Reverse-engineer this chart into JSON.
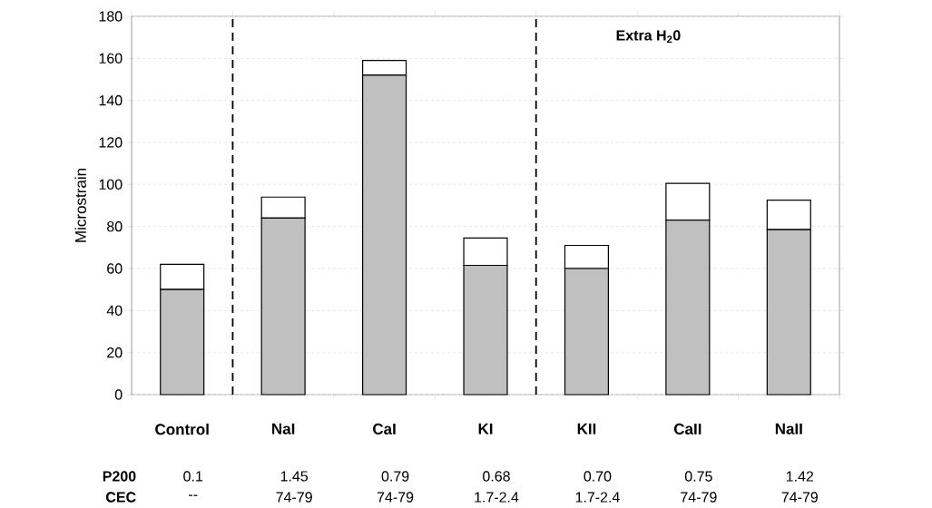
{
  "chart_data": {
    "type": "bar",
    "ylabel": "Microstrain",
    "categories": [
      "Control",
      "NaI",
      "CaI",
      "KI",
      "KII",
      "CaII",
      "NaII"
    ],
    "series": [
      {
        "color": "#c0c0c0",
        "values": [
          50,
          84,
          152,
          61.5,
          60,
          83,
          78.5
        ]
      },
      {
        "color": "#ffffff",
        "values": [
          12,
          10,
          7,
          13,
          11,
          17.5,
          14
        ]
      }
    ],
    "stacked": true,
    "ylim": [
      0,
      180
    ],
    "yticks": [
      0,
      20,
      40,
      60,
      80,
      100,
      120,
      140,
      160,
      180
    ],
    "grid": "y",
    "annotations": [
      "**Extra H$_{2}$0**",
      "**P200**",
      "0.1",
      "1.45",
      "0.79",
      "0.68",
      "0.70",
      "0.75",
      "1.42",
      "**CEC**",
      "--",
      "74-79",
      "74-79",
      "1.7-2.4",
      "1.7-2.4",
      "74-79",
      "74-79"
    ]
  }
}
